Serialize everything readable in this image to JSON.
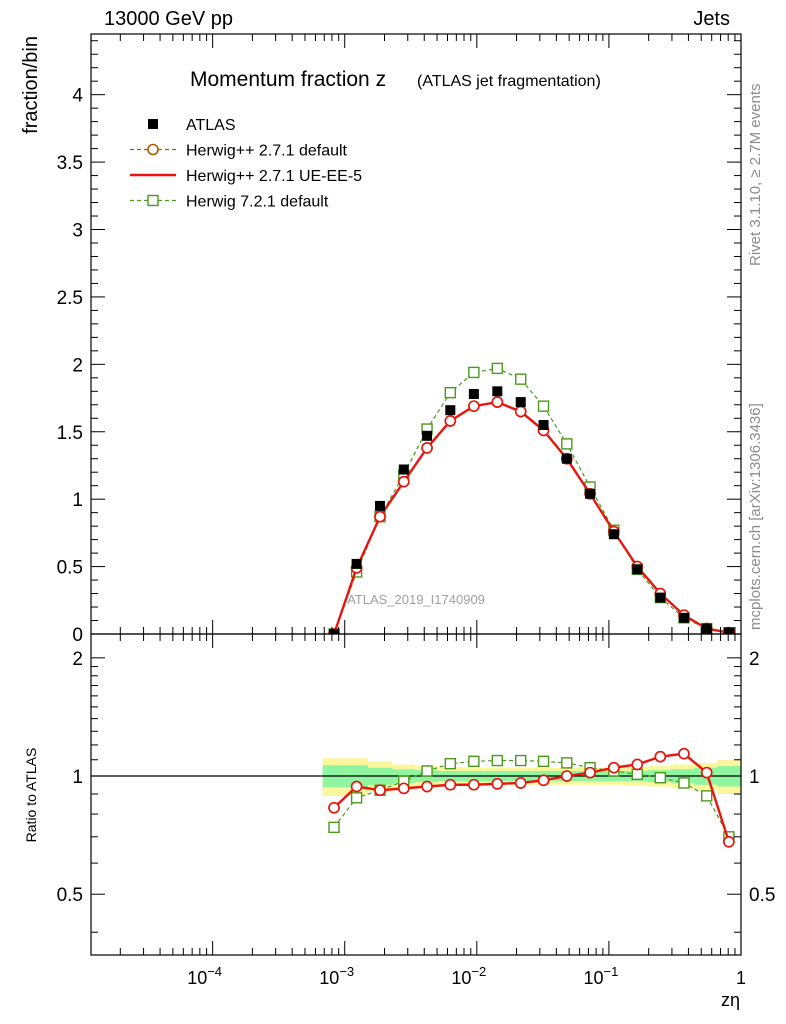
{
  "header": {
    "left": "13000 GeV pp",
    "right": "Jets"
  },
  "side_labels": {
    "rivet": "Rivet 3.1.10, ≥ 2.7M events",
    "mcplots": "mcplots.cern.ch [arXiv:1306.3436]"
  },
  "chart_data": {
    "type": "scatter",
    "title_main": "Momentum fraction z",
    "title_sub": "(ATLAS jet fragmentation)",
    "analysis_id": "ATLAS_2019_I1740909",
    "xlabel": "zη",
    "ylabel_top": "fraction/bin",
    "ylabel_ratio": "Ratio to ATLAS",
    "x_scale": "log",
    "xlim": [
      1.2e-05,
      1
    ],
    "ylim_top": [
      0,
      4.45
    ],
    "ylim_ratio": [
      0.35,
      2.3
    ],
    "x_ticks": [
      {
        "value": 0.0001,
        "mant": "10",
        "exp": "−4"
      },
      {
        "value": 0.001,
        "mant": "10",
        "exp": "−3"
      },
      {
        "value": 0.01,
        "mant": "10",
        "exp": "−2"
      },
      {
        "value": 0.1,
        "mant": "10",
        "exp": "−1"
      },
      {
        "value": 1,
        "mant": "1",
        "exp": ""
      }
    ],
    "y_ticks_top": [
      {
        "value": 0,
        "label": "0"
      },
      {
        "value": 0.5,
        "label": "0.5"
      },
      {
        "value": 1,
        "label": "1"
      },
      {
        "value": 1.5,
        "label": "1.5"
      },
      {
        "value": 2,
        "label": "2"
      },
      {
        "value": 2.5,
        "label": "2.5"
      },
      {
        "value": 3,
        "label": "3"
      },
      {
        "value": 3.5,
        "label": "3.5"
      },
      {
        "value": 4,
        "label": "4"
      }
    ],
    "y_ticks_ratio": [
      {
        "value": 0.5,
        "label": "0.5"
      },
      {
        "value": 1,
        "label": "1"
      },
      {
        "value": 2,
        "label": "2"
      }
    ],
    "x": [
      0.00083,
      0.00123,
      0.00185,
      0.0028,
      0.0042,
      0.0063,
      0.0095,
      0.0143,
      0.0215,
      0.032,
      0.048,
      0.072,
      0.109,
      0.164,
      0.245,
      0.37,
      0.55,
      0.81
    ],
    "bin_edges": [
      0.00068,
      0.001,
      0.0015,
      0.0023,
      0.0034,
      0.0051,
      0.0077,
      0.0115,
      0.0172,
      0.026,
      0.039,
      0.058,
      0.087,
      0.13,
      0.196,
      0.294,
      0.44,
      0.66,
      1.0
    ],
    "legend": [
      {
        "name": "ATLAS",
        "style": "data"
      },
      {
        "name": "Herwig++ 2.7.1 default",
        "style": "brown-circle-dashed"
      },
      {
        "name": "Herwig++ 2.7.1 UE-EE-5",
        "style": "red-solid"
      },
      {
        "name": "Herwig 7.2.1 default",
        "style": "green-square-dashed"
      }
    ],
    "colors": {
      "data": "#000000",
      "herwigpp_default": "#b05a00",
      "herwigpp_ueee5": "#e8150f",
      "herwig7": "#4a9a1e",
      "band_inner": "#8ff5a0",
      "band_outer": "#fbf69b"
    },
    "series": [
      {
        "name": "ATLAS",
        "values": [
          0.0,
          0.52,
          0.95,
          1.22,
          1.47,
          1.66,
          1.78,
          1.8,
          1.72,
          1.55,
          1.3,
          1.04,
          0.74,
          0.48,
          0.27,
          0.12,
          0.04,
          0.01
        ]
      },
      {
        "name": "Herwig++ 2.7.1 default",
        "values": [
          0.0,
          0.49,
          0.87,
          1.13,
          1.38,
          1.58,
          1.69,
          1.72,
          1.65,
          1.51,
          1.3,
          1.04,
          0.76,
          0.5,
          0.3,
          0.14,
          0.04,
          0.01
        ]
      },
      {
        "name": "Herwig++ 2.7.1 UE-EE-5",
        "values": [
          0.0,
          0.49,
          0.87,
          1.13,
          1.38,
          1.58,
          1.69,
          1.72,
          1.65,
          1.51,
          1.3,
          1.04,
          0.76,
          0.5,
          0.3,
          0.14,
          0.04,
          0.01
        ]
      },
      {
        "name": "Herwig 7.2.1 default",
        "values": [
          0.0,
          0.46,
          0.87,
          1.18,
          1.52,
          1.79,
          1.94,
          1.97,
          1.89,
          1.69,
          1.41,
          1.09,
          0.77,
          0.48,
          0.27,
          0.12,
          0.04,
          0.01
        ]
      }
    ],
    "ratio_series": [
      {
        "name": "Herwig++ 2.7.1 default",
        "values": [
          0.83,
          0.94,
          0.92,
          0.93,
          0.94,
          0.95,
          0.95,
          0.955,
          0.96,
          0.975,
          1.0,
          1.02,
          1.05,
          1.07,
          1.12,
          1.14,
          1.02,
          0.68
        ]
      },
      {
        "name": "Herwig++ 2.7.1 UE-EE-5",
        "values": [
          0.83,
          0.94,
          0.92,
          0.93,
          0.94,
          0.95,
          0.95,
          0.955,
          0.96,
          0.975,
          1.0,
          1.02,
          1.05,
          1.07,
          1.12,
          1.14,
          1.02,
          0.68
        ]
      },
      {
        "name": "Herwig 7.2.1 default",
        "values": [
          0.74,
          0.88,
          0.92,
          0.97,
          1.03,
          1.075,
          1.09,
          1.095,
          1.095,
          1.09,
          1.08,
          1.05,
          1.03,
          1.01,
          0.99,
          0.96,
          0.89,
          0.7
        ]
      }
    ],
    "ratio_band_inner": [
      0.065,
      0.065,
      0.05,
      0.04,
      0.035,
      0.03,
      0.03,
      0.03,
      0.03,
      0.03,
      0.03,
      0.03,
      0.03,
      0.03,
      0.035,
      0.04,
      0.05,
      0.06
    ],
    "ratio_band_outer": [
      0.11,
      0.11,
      0.09,
      0.07,
      0.06,
      0.055,
      0.05,
      0.05,
      0.05,
      0.05,
      0.05,
      0.05,
      0.05,
      0.055,
      0.06,
      0.07,
      0.08,
      0.1
    ]
  }
}
